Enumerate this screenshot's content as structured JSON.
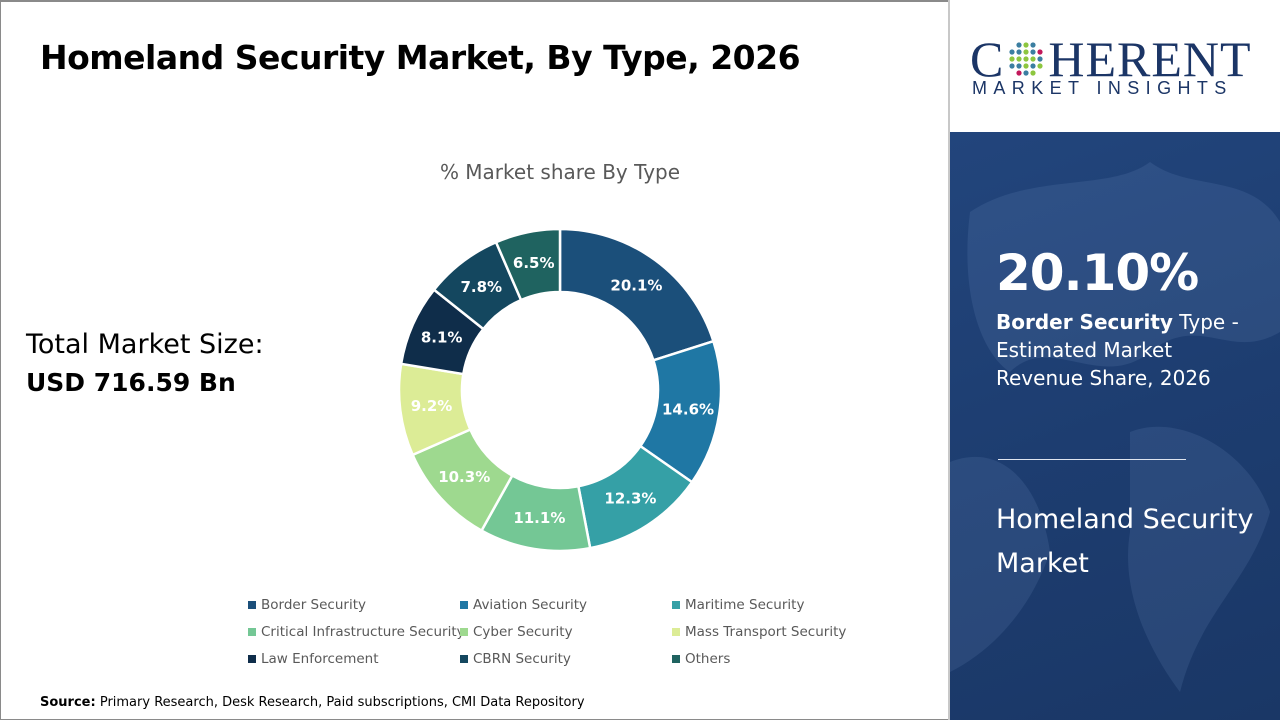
{
  "header": {
    "title": "Homeland Security Market, By Type, 2026"
  },
  "total": {
    "label": "Total Market Size:",
    "value": "USD 716.59 Bn"
  },
  "chart_data": {
    "type": "pie",
    "subtype": "donut",
    "title": "% Market share By Type",
    "categories": [
      "Border Security",
      "Aviation Security",
      "Maritime Security",
      "Critical Infrastructure Security",
      "Cyber Security",
      "Mass Transport Security",
      "Law Enforcement",
      "CBRN Security",
      "Others"
    ],
    "values": [
      20.1,
      14.6,
      12.3,
      11.1,
      10.3,
      9.2,
      8.1,
      7.8,
      6.5
    ],
    "data_labels": [
      "20.1%",
      "14.6%",
      "12.3%",
      "11.1%",
      "10.3%",
      "9.2%",
      "8.1%",
      "7.8%",
      "6.5%"
    ],
    "colors": [
      "#1b4f7a",
      "#1f77a4",
      "#35a0a6",
      "#74c795",
      "#9ed98f",
      "#dcec96",
      "#0f2d4a",
      "#14475f",
      "#1f6360"
    ],
    "legend_position": "bottom"
  },
  "source": {
    "label": "Source:",
    "text": "Primary Research, Desk Research, Paid subscriptions, CMI Data Repository"
  },
  "logo": {
    "line1": "COHERENT",
    "line2": "MARKET INSIGHTS"
  },
  "highlight": {
    "value": "20.10%",
    "segment": "Border Security",
    "desc_rest": " Type - Estimated Market Revenue Share, 2026",
    "market": "Homeland Security Market"
  }
}
